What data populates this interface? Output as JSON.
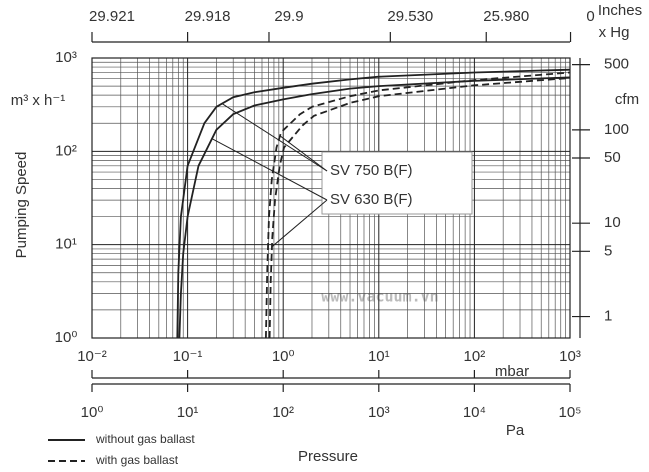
{
  "chart_data": {
    "type": "line",
    "xscale": "log",
    "yscale": "log",
    "grid": true,
    "ylabel": "Pumping Speed",
    "yunit": "m³ x h⁻¹",
    "y2unit": "cfm",
    "xunit": "mbar",
    "xlabel": "Pressure",
    "top_axis_label": [
      "Inches",
      "x Hg"
    ],
    "xlim": [
      0.01,
      1000
    ],
    "xticks": [
      {
        "value": 0.01,
        "label": "10⁻²"
      },
      {
        "value": 0.1,
        "label": "10⁻¹"
      },
      {
        "value": 1,
        "label": "10⁰"
      },
      {
        "value": 10,
        "label": "10¹"
      },
      {
        "value": 100,
        "label": "10²"
      },
      {
        "value": 1000,
        "label": "10³"
      }
    ],
    "ylim": [
      1,
      1000
    ],
    "yticks": [
      {
        "value": 1,
        "label": "10⁰"
      },
      {
        "value": 10,
        "label": "10¹"
      },
      {
        "value": 100,
        "label": "10²"
      },
      {
        "value": 1000,
        "label": "10³"
      }
    ],
    "y2lim": [
      0.589,
      589
    ],
    "y2ticks": [
      500,
      100,
      50,
      10,
      5,
      1
    ],
    "pa_axis": {
      "unit": "Pa",
      "xlim": [
        1,
        100000
      ],
      "xticks": [
        {
          "value": 1,
          "label": "10⁰"
        },
        {
          "value": 10,
          "label": "10¹"
        },
        {
          "value": 100,
          "label": "10²"
        },
        {
          "value": 1000,
          "label": "10³"
        },
        {
          "value": 10000,
          "label": "10⁴"
        },
        {
          "value": 100000,
          "label": "10⁵"
        }
      ]
    },
    "top_axis": {
      "ticks": [
        {
          "value": 0.01,
          "label": "29.921"
        },
        {
          "value": 0.1,
          "label": "29.918"
        },
        {
          "value": 0.71,
          "label": "29.9"
        },
        {
          "value": 13.2,
          "label": "29.530"
        },
        {
          "value": 133,
          "label": "25.980"
        },
        {
          "value": 1013,
          "label": "0"
        }
      ]
    },
    "legend": [
      {
        "label": "without gas ballast",
        "style": "solid"
      },
      {
        "label": "with gas ballast",
        "style": "dashed"
      }
    ],
    "models": [
      {
        "name": "SV 750 B(F)",
        "curves": [
          {
            "x": [
              0.078,
              0.08,
              0.085,
              0.1,
              0.15,
              0.2,
              0.3,
              0.5,
              1,
              2,
              5,
              10,
              100,
              1000
            ],
            "values": [
              1,
              5,
              20,
              70,
              200,
              300,
              380,
              430,
              480,
              530,
              590,
              630,
              700,
              750
            ]
          },
          {
            "x": [
              0.66,
              0.68,
              0.71,
              0.76,
              0.85,
              0.95,
              1.5,
              2,
              5,
              10,
              100,
              1000
            ],
            "values": [
              1,
              5,
              20,
              50,
              110,
              160,
              250,
              300,
              390,
              450,
              580,
              700
            ]
          }
        ]
      },
      {
        "name": "SV 630 B(F)",
        "curves": [
          {
            "x": [
              0.082,
              0.085,
              0.09,
              0.1,
              0.13,
              0.2,
              0.3,
              0.5,
              1,
              2,
              5,
              10,
              100,
              1000
            ],
            "values": [
              1,
              3,
              8,
              20,
              70,
              170,
              250,
              310,
              360,
              410,
              470,
              500,
              570,
              620
            ]
          },
          {
            "x": [
              0.72,
              0.74,
              0.77,
              0.82,
              0.92,
              1.02,
              1.6,
              2.1,
              5,
              10,
              100,
              1000
            ],
            "values": [
              1,
              4,
              12,
              30,
              70,
              110,
              190,
              240,
              330,
              390,
              510,
              610
            ]
          }
        ]
      }
    ],
    "watermark": "www.vacuum.vn"
  }
}
